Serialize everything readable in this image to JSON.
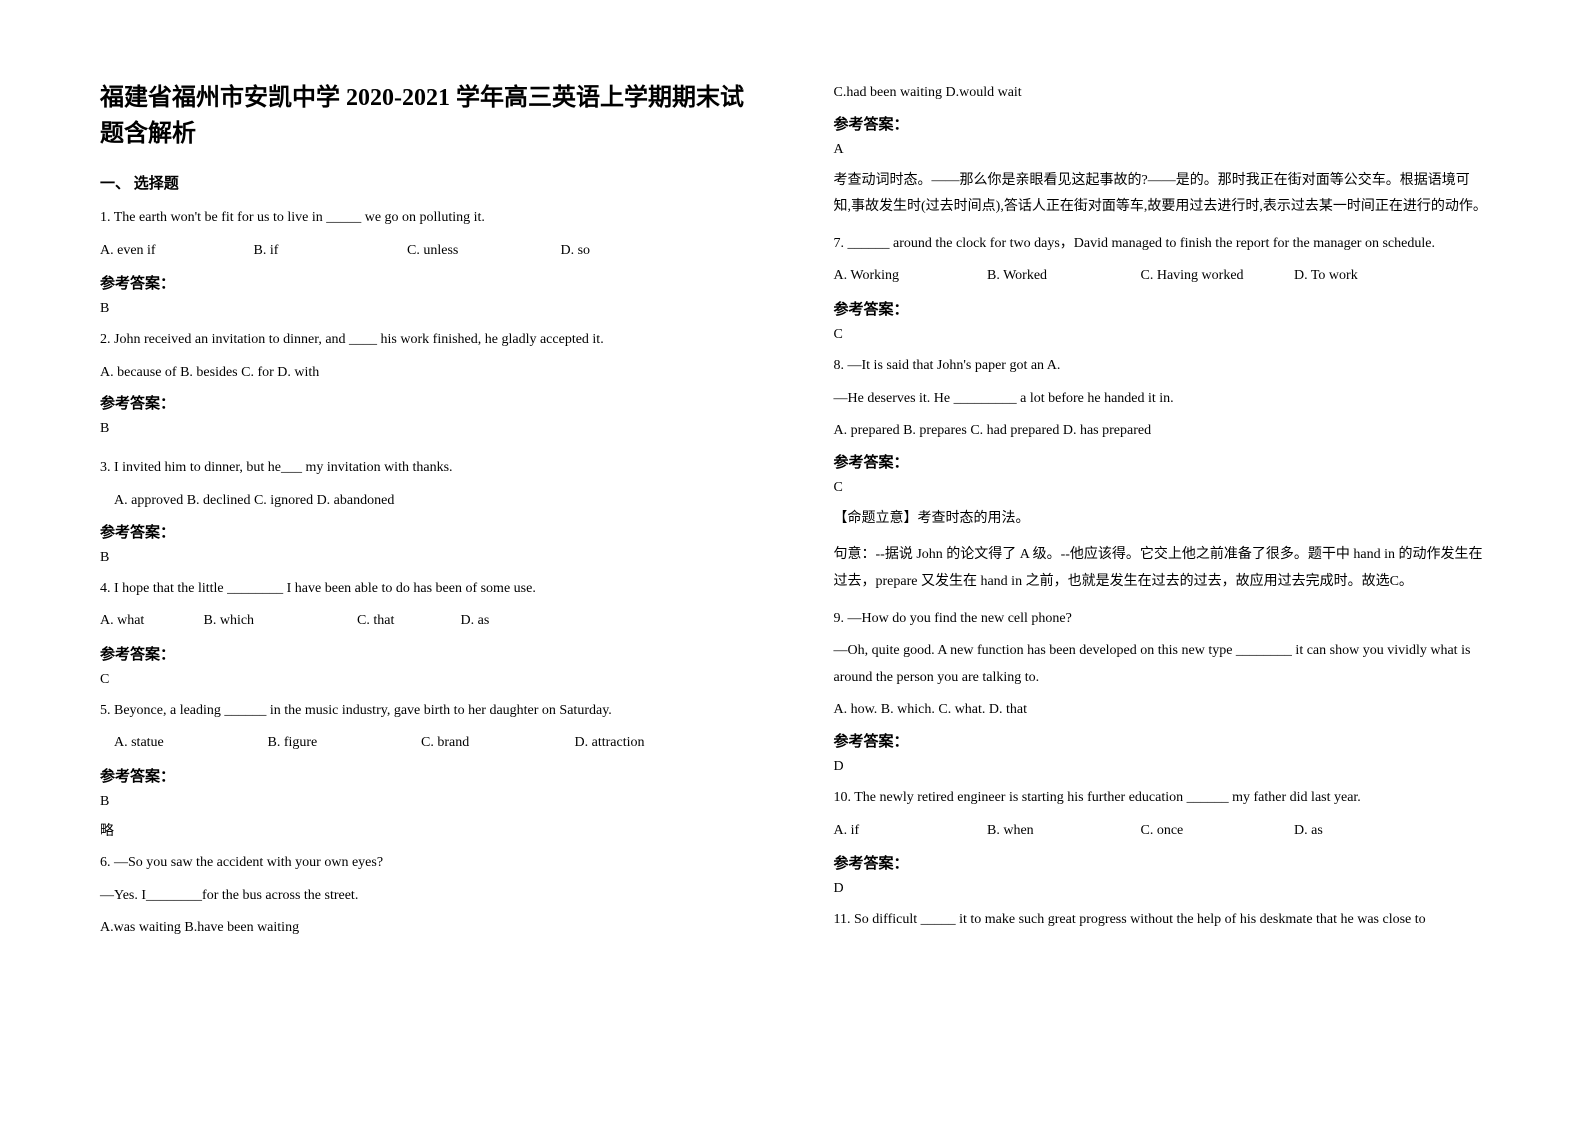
{
  "title": "福建省福州市安凯中学 2020-2021 学年高三英语上学期期末试题含解析",
  "section1_heading": "一、 选择题",
  "answer_label": "参考答案：",
  "omit": "略",
  "q1": {
    "text": "1. The earth won't be fit for us to live in _____ we go on polluting it.",
    "a": "A. even if",
    "b": "B. if",
    "c": "C. unless",
    "d": "D. so",
    "ans": "B"
  },
  "q2": {
    "text": "2. John received an invitation to dinner, and ____ his work finished, he gladly accepted it.",
    "opts": " A. because of   B. besides   C. for   D. with",
    "ans": "B"
  },
  "q3": {
    "text": "3. I invited him to dinner, but he___ my invitation with thanks.",
    "opts": "A. approved     B. declined     C. ignored      D. abandoned",
    "ans": "B"
  },
  "q4": {
    "text": "4. I hope that the little ________ I have been able to do has been of some use.",
    "a": "A. what",
    "b": "B. which",
    "c": "C. that",
    "d": "D. as",
    "ans": "C"
  },
  "q5": {
    "text": "5. Beyonce, a leading ______ in the music industry, gave birth to her daughter on Saturday.",
    "a": "A. statue",
    "b": "B. figure",
    "c": "C. brand",
    "d": "D. attraction",
    "ans": "B"
  },
  "q6": {
    "l1": "6. —So you saw the accident with your own eyes?",
    "l2": "—Yes. I________for the bus across the street.",
    "l3": "A.was waiting   B.have been waiting",
    "l4": "C.had been waiting     D.would wait",
    "ans": "A",
    "exp": "考查动词时态。——那么你是亲眼看见这起事故的?——是的。那时我正在街对面等公交车。根据语境可知,事故发生时(过去时间点),答话人正在街对面等车,故要用过去进行时,表示过去某一时间正在进行的动作。"
  },
  "q7": {
    "text": "7. ______ around the clock for two days，David managed to finish the report for the manager on schedule.",
    "a": "A. Working",
    "b": "B. Worked",
    "c": "C. Having worked",
    "d": "D. To work",
    "ans": "C"
  },
  "q8": {
    "l1": "8. —It is said that John's paper got an A.",
    "l2": "—He deserves it. He _________ a lot before he handed it in.",
    "l3": "A. prepared  B. prepares  C. had prepared  D. has prepared",
    "ans": "C",
    "exp1": "【命题立意】考查时态的用法。",
    "exp2": "句意：--据说 John 的论文得了 A 级。--他应该得。它交上他之前准备了很多。题干中 hand in 的动作发生在过去，prepare 又发生在 hand in 之前，也就是发生在过去的过去，故应用过去完成时。故选C。"
  },
  "q9": {
    "l1": "9. —How do you find the new cell phone?",
    "l2": "—Oh, quite good. A new function has been developed on this new type ________ it can show you vividly what is around the person you are talking to.",
    "l3": "A. how.   B. which.   C. what.  D. that",
    "ans": "D"
  },
  "q10": {
    "text": "10. The newly retired engineer is starting his further education ______ my father did last year.",
    "a": "A. if",
    "b": "B. when",
    "c": "C. once",
    "d": "D. as",
    "ans": "D"
  },
  "q11": {
    "text": "11. So difficult _____ it to make such great progress without the help of his deskmate that he was close to"
  }
}
